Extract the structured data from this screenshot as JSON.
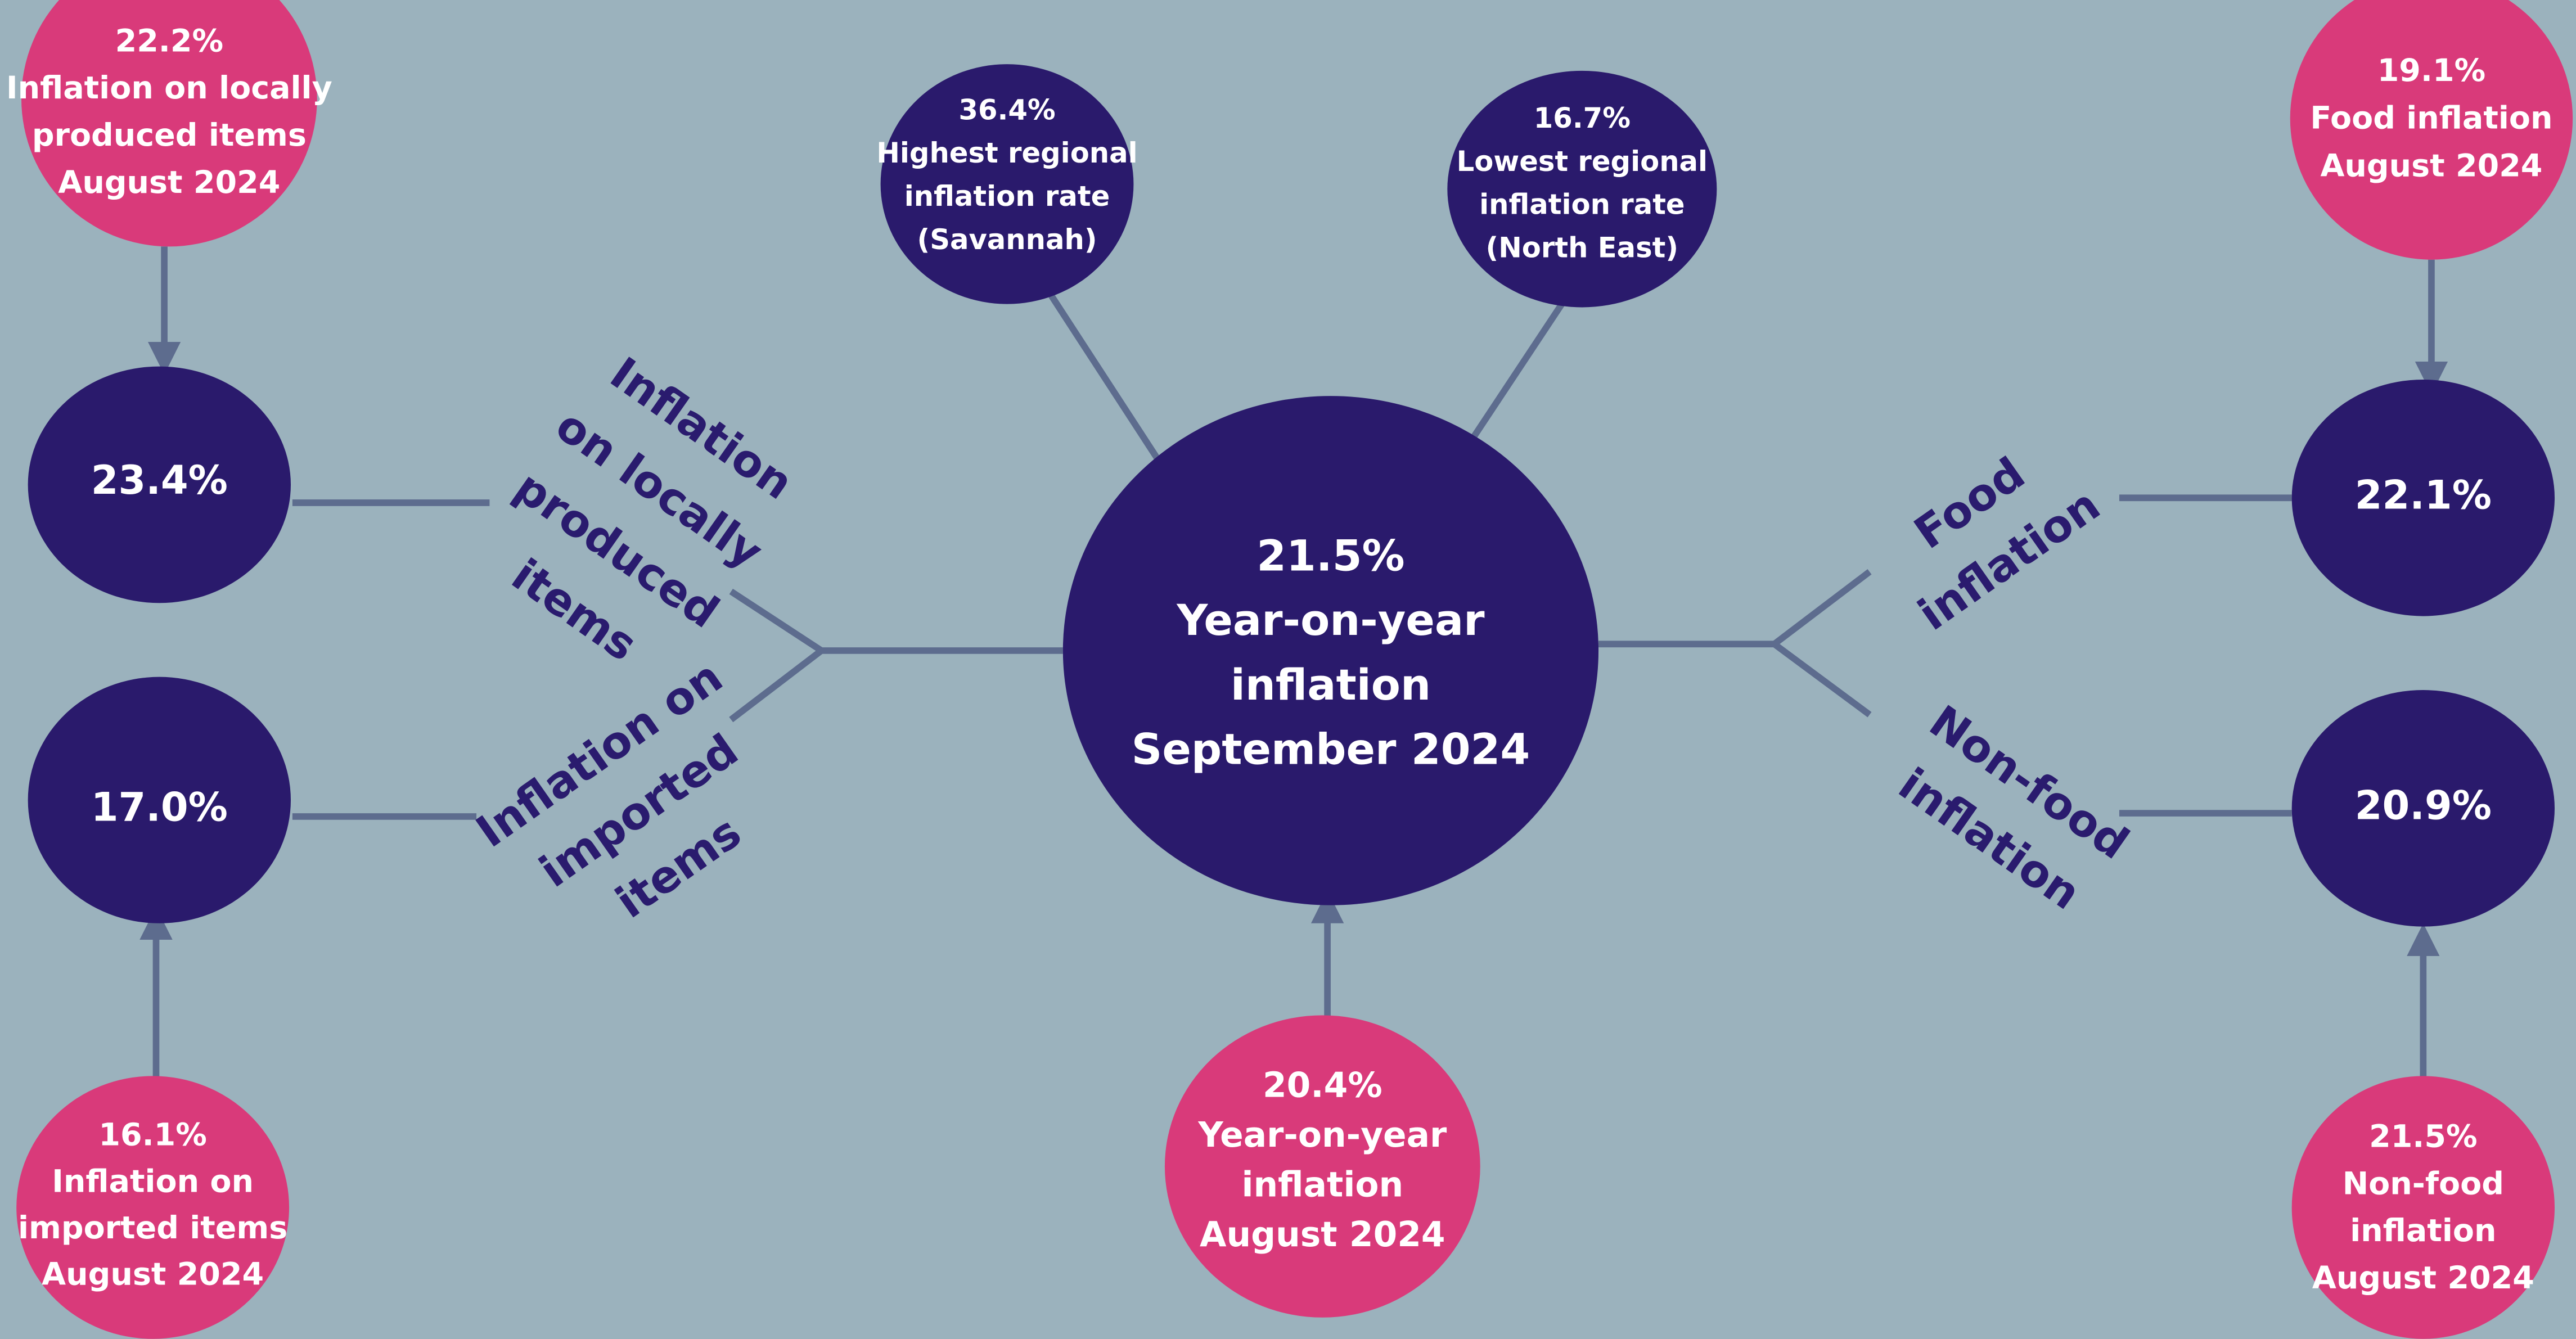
{
  "nodes": [
    {
      "lines": [
        "21.5%",
        "Year-on-year",
        "inflation",
        "September 2024"
      ]
    },
    {
      "lines": [
        "22.2%",
        "Inflation on locally",
        "produced items",
        "August 2024"
      ]
    },
    {
      "lines": [
        "23.4%"
      ]
    },
    {
      "lines": [
        "17.0%"
      ]
    },
    {
      "lines": [
        "16.1%",
        "Inflation on",
        "imported items",
        "August 2024"
      ]
    },
    {
      "lines": [
        "36.4%",
        "Highest regional",
        "inflation rate",
        "(Savannah)"
      ]
    },
    {
      "lines": [
        "16.7%",
        "Lowest regional",
        "inflation rate",
        "(North East)"
      ]
    },
    {
      "lines": [
        "20.4%",
        "Year-on-year",
        "inflation",
        "August 2024"
      ]
    },
    {
      "lines": [
        "19.1%",
        "Food inflation",
        "August 2024"
      ]
    },
    {
      "lines": [
        "22.1%"
      ]
    },
    {
      "lines": [
        "20.9%"
      ]
    },
    {
      "lines": [
        "21.5%",
        "Non-food",
        "inflation",
        "August 2024"
      ]
    }
  ],
  "labels": [
    {
      "lines": [
        "Inflation",
        "on locally",
        "produced",
        "items"
      ]
    },
    {
      "lines": [
        "Inflation on",
        "imported",
        "items"
      ]
    },
    {
      "lines": [
        "Food",
        "inflation"
      ]
    },
    {
      "lines": [
        "Non-food",
        "inflation"
      ]
    }
  ]
}
